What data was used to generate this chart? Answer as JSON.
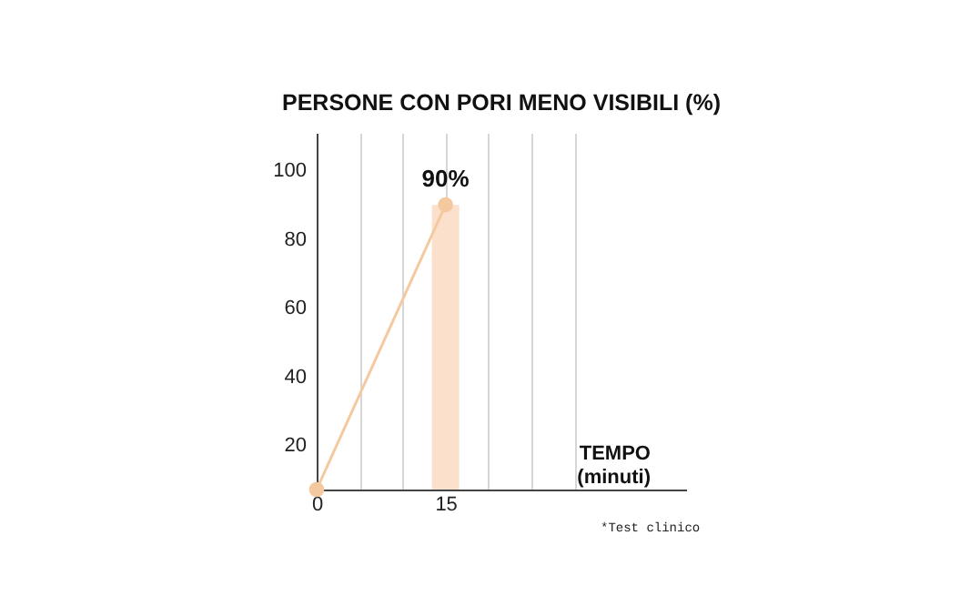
{
  "chart_data": {
    "type": "line",
    "title": "PERSONE CON PORI MENO VISIBILI (%)",
    "xlabel": "TEMPO (minuti)",
    "annotations": [
      "*Test clinico"
    ],
    "xlim": [
      0,
      43
    ],
    "ylim": [
      7,
      111
    ],
    "xticks": [
      0,
      {
        "value": 5,
        "label": null
      },
      {
        "value": 10,
        "label": null
      },
      15,
      {
        "value": 20,
        "label": null
      },
      {
        "value": 25,
        "label": null
      },
      {
        "value": 30,
        "label": null
      }
    ],
    "yticks": [
      20,
      40,
      60,
      80,
      100
    ],
    "grid": "x",
    "marker": "circle",
    "x": [
      0,
      15
    ],
    "series": [
      {
        "type": "bar",
        "color": "#fbe1cb",
        "values": [
          null,
          90
        ]
      },
      {
        "color": "#f5c9a0",
        "values": [
          7,
          90
        ],
        "value_labels": [
          null,
          "90%"
        ]
      }
    ]
  }
}
